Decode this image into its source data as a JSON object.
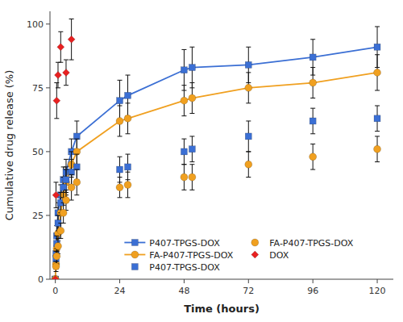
{
  "chart_data": {
    "type": "line",
    "xlabel": "Time (hours)",
    "ylabel": "Cumulative drug release (%)",
    "xlim": [
      -2,
      126
    ],
    "ylim": [
      0,
      105
    ],
    "xticks": [
      0,
      24,
      48,
      72,
      96,
      120
    ],
    "yticks": [
      0,
      25,
      50,
      75,
      100
    ],
    "grid": false,
    "legend": "bottom",
    "series": [
      {
        "name": "P407-TPGS-DOX",
        "color": "#3b6fd4",
        "marker": "square",
        "line_style": "solid",
        "x": [
          0,
          0.25,
          0.5,
          1,
          2,
          3,
          4,
          6,
          8,
          24,
          27,
          48,
          51,
          72,
          96,
          120
        ],
        "values": [
          0,
          10,
          17,
          26,
          33,
          39,
          42,
          50,
          56,
          70,
          72,
          82,
          83,
          84,
          87,
          91
        ],
        "errors": [
          0,
          3,
          4,
          4,
          4,
          5,
          5,
          5,
          6,
          8,
          8,
          8,
          8,
          7,
          7,
          8
        ]
      },
      {
        "name": "FA-P407-TPGS-DOX",
        "color": "#f0a020",
        "marker": "circle",
        "line_style": "solid",
        "x": [
          0,
          0.25,
          0.5,
          1,
          2,
          3,
          4,
          6,
          8,
          24,
          27,
          48,
          51,
          72,
          96,
          120
        ],
        "values": [
          0,
          6,
          12,
          18,
          26,
          33,
          38,
          45,
          50,
          62,
          63,
          70,
          71,
          75,
          77,
          81
        ],
        "errors": [
          0,
          2,
          3,
          3,
          4,
          4,
          5,
          5,
          5,
          6,
          6,
          6,
          6,
          6,
          6,
          7
        ]
      },
      {
        "name": "P407-TPGS-DOX",
        "color": "#3b6fd4",
        "marker": "square",
        "line_style": "none",
        "x": [
          0,
          0.25,
          0.5,
          1,
          2,
          3,
          4,
          6,
          8,
          24,
          27,
          48,
          51,
          72,
          96,
          120
        ],
        "values": [
          0,
          8,
          14,
          22,
          30,
          36,
          39,
          42,
          44,
          43,
          44,
          50,
          51,
          56,
          62,
          63
        ],
        "errors": [
          0,
          3,
          3,
          3,
          4,
          4,
          5,
          5,
          5,
          5,
          5,
          5,
          5,
          6,
          5,
          5
        ]
      },
      {
        "name": "FA-P407-TPGS-DOX",
        "color": "#f0a020",
        "marker": "circle",
        "line_style": "none",
        "x": [
          0,
          0.25,
          0.5,
          1,
          2,
          3,
          4,
          6,
          8,
          24,
          27,
          48,
          51,
          72,
          96,
          120
        ],
        "values": [
          0,
          5,
          9,
          13,
          19,
          26,
          31,
          36,
          38,
          36,
          37,
          40,
          40,
          45,
          48,
          51
        ],
        "errors": [
          0,
          2,
          3,
          3,
          3,
          4,
          4,
          5,
          5,
          4,
          5,
          5,
          5,
          5,
          5,
          5
        ]
      },
      {
        "name": "DOX",
        "color": "#e82020",
        "marker": "diamond",
        "line_style": "none",
        "x": [
          0,
          0.25,
          0.5,
          1,
          2,
          4,
          6
        ],
        "values": [
          0,
          33,
          70,
          80,
          91,
          81,
          94
        ],
        "errors": [
          0,
          5,
          7,
          5,
          6,
          5,
          8
        ]
      }
    ]
  }
}
